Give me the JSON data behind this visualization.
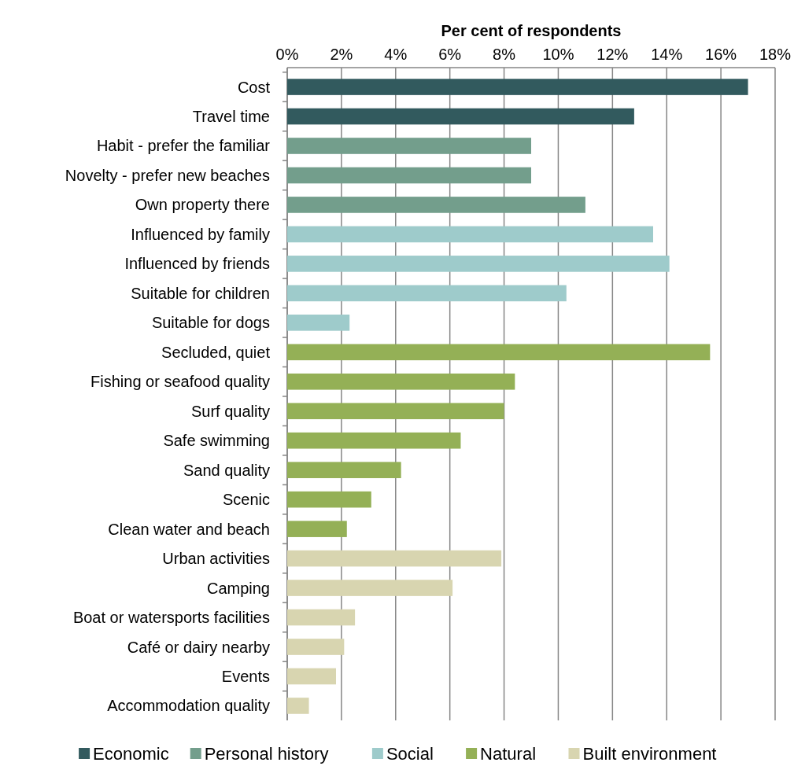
{
  "chart_data": {
    "type": "bar",
    "orientation": "horizontal",
    "xlabel": "Per cent of respondents",
    "categories": [
      "Cost",
      "Travel time",
      "Habit - prefer the familiar",
      "Novelty - prefer new beaches",
      "Own property there",
      "Influenced by family",
      "Influenced by friends",
      "Suitable for children",
      "Suitable for dogs",
      "Secluded, quiet",
      "Fishing or seafood quality",
      "Surf quality",
      "Safe swimming",
      "Sand quality",
      "Scenic",
      "Clean water and beach",
      "Urban activities",
      "Camping",
      "Boat or watersports facilities",
      "Café or dairy nearby",
      "Events",
      "Accommodation quality"
    ],
    "series": [
      {
        "name": "Economic",
        "color": "#325a5e",
        "values": [
          17.0,
          12.8,
          null,
          null,
          null,
          null,
          null,
          null,
          null,
          null,
          null,
          null,
          null,
          null,
          null,
          null,
          null,
          null,
          null,
          null,
          null,
          null
        ]
      },
      {
        "name": "Personal history",
        "color": "#739e8c",
        "values": [
          null,
          null,
          9.0,
          9.0,
          11.0,
          null,
          null,
          null,
          null,
          null,
          null,
          null,
          null,
          null,
          null,
          null,
          null,
          null,
          null,
          null,
          null,
          null
        ]
      },
      {
        "name": "Social",
        "color": "#9ecbcb",
        "values": [
          null,
          null,
          null,
          null,
          null,
          13.5,
          14.1,
          10.3,
          2.3,
          null,
          null,
          null,
          null,
          null,
          null,
          null,
          null,
          null,
          null,
          null,
          null,
          null
        ]
      },
      {
        "name": "Natural",
        "color": "#94b056",
        "values": [
          null,
          null,
          null,
          null,
          null,
          null,
          null,
          null,
          null,
          15.6,
          8.4,
          8.0,
          6.4,
          4.2,
          3.1,
          2.2,
          null,
          null,
          null,
          null,
          null,
          null
        ]
      },
      {
        "name": "Built environment",
        "color": "#d8d5b0",
        "values": [
          null,
          null,
          null,
          null,
          null,
          null,
          null,
          null,
          null,
          null,
          null,
          null,
          null,
          null,
          null,
          null,
          7.9,
          6.1,
          2.5,
          2.1,
          1.8,
          0.8
        ]
      }
    ],
    "xlim": [
      0,
      18
    ],
    "xticks": [
      {
        "value": 0,
        "label": "0%"
      },
      {
        "value": 2,
        "label": "2%"
      },
      {
        "value": 4,
        "label": "4%"
      },
      {
        "value": 6,
        "label": "6%"
      },
      {
        "value": 8,
        "label": "8%"
      },
      {
        "value": 10,
        "label": "10%"
      },
      {
        "value": 12,
        "label": "12%"
      },
      {
        "value": 14,
        "label": "14%"
      },
      {
        "value": 16,
        "label": "16%"
      },
      {
        "value": 18,
        "label": "18%"
      }
    ],
    "grid": "x",
    "legend": "bottom"
  }
}
